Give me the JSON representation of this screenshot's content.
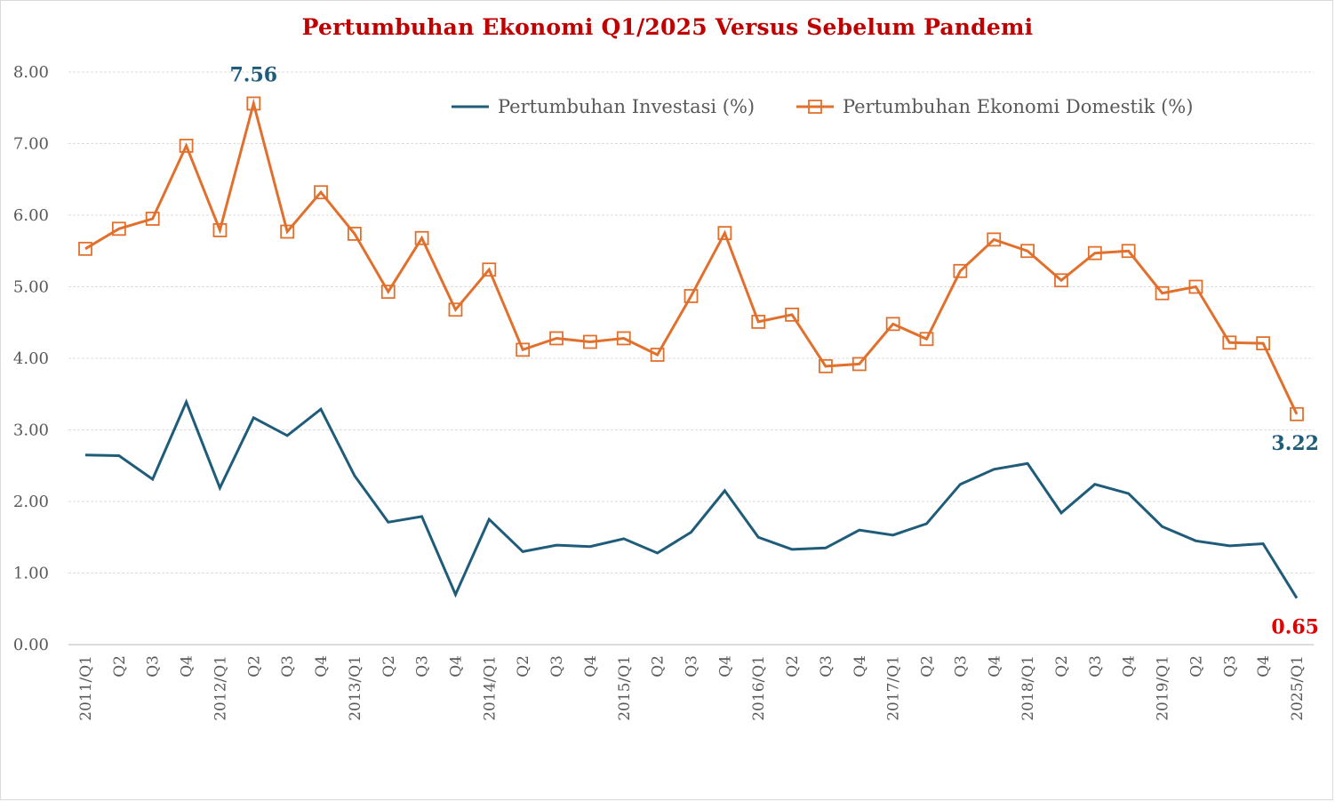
{
  "chart_data": {
    "type": "line",
    "title": "Pertumbuhan Ekonomi Q1/2025 Versus Sebelum Pandemi",
    "xlabel": "",
    "ylabel": "",
    "ylim": [
      0,
      8
    ],
    "yticks": [
      "0.00",
      "1.00",
      "2.00",
      "3.00",
      "4.00",
      "5.00",
      "6.00",
      "7.00",
      "8.00"
    ],
    "grid": true,
    "legend_position": "top-right",
    "categories": [
      "2011/Q1",
      "Q2",
      "Q3",
      "Q4",
      "2012/Q1",
      "Q2",
      "Q3",
      "Q4",
      "2013/Q1",
      "Q2",
      "Q3",
      "Q4",
      "2014/Q1",
      "Q2",
      "Q3",
      "Q4",
      "2015/Q1",
      "Q2",
      "Q3",
      "Q4",
      "2016/Q1",
      "Q2",
      "Q3",
      "Q4",
      "2017/Q1",
      "Q2",
      "Q3",
      "Q4",
      "2018/Q1",
      "Q2",
      "Q3",
      "Q4",
      "2019/Q1",
      "Q2",
      "Q3",
      "Q4",
      "2025/Q1"
    ],
    "series": [
      {
        "name": "Pertumbuhan Investasi (%)",
        "color": "#1f5c7a",
        "marker": "none",
        "values": [
          2.65,
          2.64,
          2.31,
          3.39,
          2.19,
          3.17,
          2.92,
          3.29,
          2.36,
          1.71,
          1.79,
          0.7,
          1.75,
          1.3,
          1.39,
          1.37,
          1.48,
          1.28,
          1.57,
          2.15,
          1.5,
          1.33,
          1.35,
          1.6,
          1.53,
          1.69,
          2.24,
          2.45,
          2.53,
          1.84,
          2.24,
          2.11,
          1.65,
          1.45,
          1.38,
          1.41,
          0.65
        ]
      },
      {
        "name": "Pertumbuhan Ekonomi Domestik (%)",
        "color": "#e2702d",
        "marker": "square",
        "values": [
          5.53,
          5.81,
          5.95,
          6.97,
          5.79,
          7.56,
          5.77,
          6.32,
          5.74,
          4.93,
          5.68,
          4.68,
          5.24,
          4.12,
          4.28,
          4.23,
          4.28,
          4.05,
          4.87,
          5.75,
          4.51,
          4.61,
          3.89,
          3.92,
          4.48,
          4.27,
          5.22,
          5.66,
          5.5,
          5.09,
          5.47,
          5.5,
          4.91,
          5.0,
          4.22,
          4.21,
          3.22
        ]
      }
    ],
    "annotations": [
      {
        "text": "7.56",
        "category_index": 5,
        "series": "Pertumbuhan Ekonomi Domestik (%)",
        "color": "#1f5c7a",
        "placement": "above"
      },
      {
        "text": "3.22",
        "category_index": 36,
        "series": "Pertumbuhan Ekonomi Domestik (%)",
        "color": "#1f5c7a",
        "placement": "below"
      },
      {
        "text": "0.65",
        "category_index": 36,
        "series": "Pertumbuhan Investasi (%)",
        "color": "#e00000",
        "placement": "below"
      }
    ]
  }
}
